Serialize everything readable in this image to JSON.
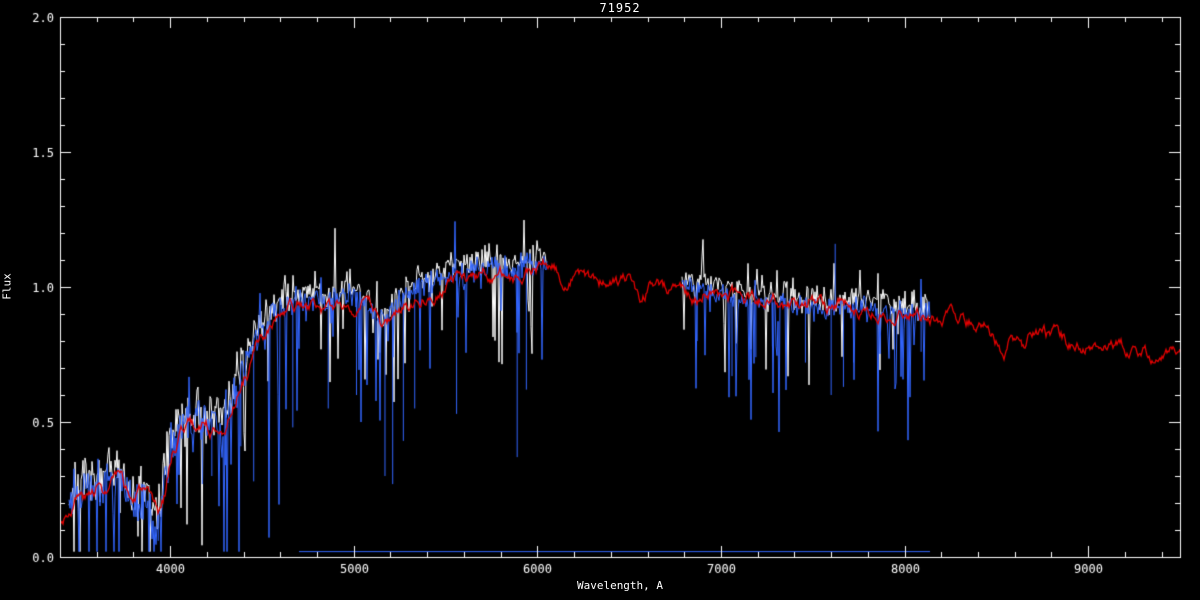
{
  "chart_data": {
    "type": "line",
    "title": "71952",
    "xlabel": "Wavelength, A",
    "ylabel": "Flux",
    "xlim": [
      3400,
      9500
    ],
    "ylim": [
      0.0,
      2.0
    ],
    "x_ticks": [
      {
        "v": 4000,
        "label": "4000"
      },
      {
        "v": 5000,
        "label": "5000"
      },
      {
        "v": 6000,
        "label": "6000"
      },
      {
        "v": 7000,
        "label": "7000"
      },
      {
        "v": 8000,
        "label": "8000"
      },
      {
        "v": 9000,
        "label": "9000"
      }
    ],
    "x_minor_step": 200,
    "y_ticks": [
      {
        "v": 0.0,
        "label": "0.0"
      },
      {
        "v": 0.5,
        "label": "0.5"
      },
      {
        "v": 1.0,
        "label": "1.0"
      },
      {
        "v": 1.5,
        "label": "1.5"
      },
      {
        "v": 2.0,
        "label": "2.0"
      }
    ],
    "y_minor_step": 0.1,
    "grid": false,
    "legend": "none",
    "colors": {
      "background": "#000000",
      "axis": "#ffffff",
      "text": "#ffffff",
      "observed_blue": "#3366ff",
      "observed_white": "#ffffff",
      "template_red": "#e00000"
    },
    "anchors": {
      "observed": [
        [
          3450,
          0.2
        ],
        [
          3480,
          0.26
        ],
        [
          3510,
          0.2
        ],
        [
          3540,
          0.28
        ],
        [
          3570,
          0.24
        ],
        [
          3600,
          0.3
        ],
        [
          3630,
          0.24
        ],
        [
          3660,
          0.31
        ],
        [
          3690,
          0.25
        ],
        [
          3720,
          0.32
        ],
        [
          3750,
          0.27
        ],
        [
          3780,
          0.22
        ],
        [
          3810,
          0.18
        ],
        [
          3840,
          0.26
        ],
        [
          3870,
          0.2
        ],
        [
          3900,
          0.16
        ],
        [
          3930,
          0.14
        ],
        [
          3960,
          0.25
        ],
        [
          4000,
          0.38
        ],
        [
          4040,
          0.46
        ],
        [
          4080,
          0.52
        ],
        [
          4120,
          0.48
        ],
        [
          4160,
          0.52
        ],
        [
          4200,
          0.48
        ],
        [
          4240,
          0.53
        ],
        [
          4280,
          0.5
        ],
        [
          4320,
          0.56
        ],
        [
          4360,
          0.62
        ],
        [
          4400,
          0.68
        ],
        [
          4440,
          0.76
        ],
        [
          4480,
          0.82
        ],
        [
          4520,
          0.86
        ],
        [
          4560,
          0.9
        ],
        [
          4600,
          0.91
        ],
        [
          4640,
          0.94
        ],
        [
          4680,
          0.96
        ],
        [
          4720,
          0.95
        ],
        [
          4760,
          0.96
        ],
        [
          4800,
          0.97
        ],
        [
          4840,
          0.93
        ],
        [
          4880,
          0.95
        ],
        [
          4920,
          0.96
        ],
        [
          4960,
          0.97
        ],
        [
          5000,
          0.96
        ],
        [
          5040,
          0.95
        ],
        [
          5080,
          0.93
        ],
        [
          5120,
          0.9
        ],
        [
          5160,
          0.88
        ],
        [
          5200,
          0.91
        ],
        [
          5240,
          0.94
        ],
        [
          5280,
          0.97
        ],
        [
          5320,
          0.99
        ],
        [
          5360,
          1.0
        ],
        [
          5400,
          1.01
        ],
        [
          5440,
          1.02
        ],
        [
          5480,
          1.03
        ],
        [
          5520,
          1.04
        ],
        [
          5560,
          1.05
        ],
        [
          5600,
          1.05
        ],
        [
          5640,
          1.06
        ],
        [
          5680,
          1.07
        ],
        [
          5720,
          1.07
        ],
        [
          5760,
          1.08
        ],
        [
          5800,
          1.08
        ],
        [
          5840,
          1.07
        ],
        [
          5880,
          1.05
        ],
        [
          5920,
          1.08
        ],
        [
          5960,
          1.08
        ],
        [
          6000,
          1.09
        ],
        [
          6050,
          1.08
        ],
        [
          6790,
          1.0
        ],
        [
          6840,
          1.0
        ],
        [
          6890,
          0.99
        ],
        [
          6940,
          0.98
        ],
        [
          6990,
          0.97
        ],
        [
          7040,
          0.97
        ],
        [
          7090,
          0.96
        ],
        [
          7140,
          0.96
        ],
        [
          7190,
          0.95
        ],
        [
          7240,
          0.95
        ],
        [
          7290,
          0.94
        ],
        [
          7340,
          0.94
        ],
        [
          7390,
          0.93
        ],
        [
          7440,
          0.93
        ],
        [
          7490,
          0.93
        ],
        [
          7540,
          0.92
        ],
        [
          7590,
          0.92
        ],
        [
          7640,
          0.93
        ],
        [
          7690,
          0.93
        ],
        [
          7740,
          0.92
        ],
        [
          7790,
          0.92
        ],
        [
          7840,
          0.93
        ],
        [
          7890,
          0.92
        ],
        [
          7940,
          0.91
        ],
        [
          7990,
          0.91
        ],
        [
          8040,
          0.9
        ],
        [
          8090,
          0.9
        ],
        [
          8140,
          0.9
        ]
      ],
      "template": [
        [
          3400,
          0.13
        ],
        [
          3450,
          0.18
        ],
        [
          3500,
          0.23
        ],
        [
          3550,
          0.21
        ],
        [
          3600,
          0.27
        ],
        [
          3650,
          0.23
        ],
        [
          3700,
          0.29
        ],
        [
          3750,
          0.25
        ],
        [
          3800,
          0.2
        ],
        [
          3850,
          0.26
        ],
        [
          3900,
          0.17
        ],
        [
          3935,
          0.14
        ],
        [
          3970,
          0.22
        ],
        [
          4000,
          0.36
        ],
        [
          4050,
          0.46
        ],
        [
          4100,
          0.51
        ],
        [
          4140,
          0.47
        ],
        [
          4180,
          0.51
        ],
        [
          4230,
          0.47
        ],
        [
          4280,
          0.51
        ],
        [
          4310,
          0.48
        ],
        [
          4350,
          0.58
        ],
        [
          4400,
          0.66
        ],
        [
          4450,
          0.74
        ],
        [
          4500,
          0.8
        ],
        [
          4550,
          0.85
        ],
        [
          4600,
          0.88
        ],
        [
          4650,
          0.91
        ],
        [
          4700,
          0.93
        ],
        [
          4750,
          0.91
        ],
        [
          4800,
          0.93
        ],
        [
          4860,
          0.89
        ],
        [
          4900,
          0.92
        ],
        [
          4950,
          0.94
        ],
        [
          5000,
          0.94
        ],
        [
          5050,
          0.93
        ],
        [
          5100,
          0.91
        ],
        [
          5170,
          0.86
        ],
        [
          5220,
          0.9
        ],
        [
          5270,
          0.93
        ],
        [
          5320,
          0.96
        ],
        [
          5380,
          0.98
        ],
        [
          5440,
          1.0
        ],
        [
          5500,
          1.01
        ],
        [
          5560,
          1.03
        ],
        [
          5620,
          1.04
        ],
        [
          5680,
          1.05
        ],
        [
          5740,
          1.05
        ],
        [
          5800,
          1.06
        ],
        [
          5890,
          1.01
        ],
        [
          5950,
          1.06
        ],
        [
          6000,
          1.07
        ],
        [
          6060,
          1.08
        ],
        [
          6120,
          1.05
        ],
        [
          6160,
          1.02
        ],
        [
          6200,
          1.04
        ],
        [
          6250,
          1.02
        ],
        [
          6300,
          1.04
        ],
        [
          6350,
          1.02
        ],
        [
          6400,
          1.03
        ],
        [
          6440,
          1.0
        ],
        [
          6500,
          1.02
        ],
        [
          6560,
          0.96
        ],
        [
          6620,
          1.01
        ],
        [
          6680,
          1.0
        ],
        [
          6740,
          1.0
        ],
        [
          6800,
          1.0
        ],
        [
          6870,
          0.95
        ],
        [
          6910,
          0.99
        ],
        [
          6960,
          0.98
        ],
        [
          7010,
          0.97
        ],
        [
          7060,
          0.97
        ],
        [
          7110,
          0.96
        ],
        [
          7160,
          0.96
        ],
        [
          7210,
          0.95
        ],
        [
          7260,
          0.95
        ],
        [
          7310,
          0.94
        ],
        [
          7360,
          0.94
        ],
        [
          7410,
          0.93
        ],
        [
          7460,
          0.93
        ],
        [
          7510,
          0.93
        ],
        [
          7560,
          0.92
        ],
        [
          7610,
          0.92
        ],
        [
          7660,
          0.93
        ],
        [
          7710,
          0.93
        ],
        [
          7760,
          0.92
        ],
        [
          7810,
          0.92
        ],
        [
          7860,
          0.93
        ],
        [
          7910,
          0.92
        ],
        [
          7960,
          0.91
        ],
        [
          8010,
          0.91
        ],
        [
          8060,
          0.9
        ],
        [
          8110,
          0.9
        ],
        [
          8160,
          0.89
        ],
        [
          8210,
          0.89
        ],
        [
          8260,
          0.88
        ],
        [
          8310,
          0.88
        ],
        [
          8360,
          0.87
        ],
        [
          8410,
          0.86
        ],
        [
          8460,
          0.84
        ],
        [
          8500,
          0.79
        ],
        [
          8540,
          0.7
        ],
        [
          8570,
          0.82
        ],
        [
          8610,
          0.8
        ],
        [
          8650,
          0.74
        ],
        [
          8690,
          0.82
        ],
        [
          8740,
          0.82
        ],
        [
          8790,
          0.81
        ],
        [
          8840,
          0.81
        ],
        [
          8890,
          0.8
        ],
        [
          8940,
          0.8
        ],
        [
          8990,
          0.79
        ],
        [
          9040,
          0.79
        ],
        [
          9090,
          0.79
        ],
        [
          9140,
          0.78
        ],
        [
          9190,
          0.78
        ],
        [
          9240,
          0.77
        ],
        [
          9290,
          0.77
        ],
        [
          9340,
          0.76
        ],
        [
          9390,
          0.76
        ],
        [
          9440,
          0.75
        ],
        [
          9500,
          0.75
        ]
      ],
      "baseline": [
        [
          4700,
          0.006
        ],
        [
          8140,
          0.006
        ]
      ]
    },
    "series": [
      {
        "name": "error-baseline",
        "color": "#3366ff",
        "width": 1,
        "anchors": "baseline",
        "segments": [
          [
            4700,
            8140
          ]
        ],
        "noise": {
          "seed": 5,
          "amp": 0.004,
          "spike_prob": 0,
          "spike_depth": 0,
          "up_prob": 0
        }
      },
      {
        "name": "observed-white",
        "color": "#ffffff",
        "width": 1,
        "anchors": "observed",
        "offset": 0.03,
        "segments": [
          [
            3450,
            6050
          ],
          [
            6790,
            8140
          ]
        ],
        "noise": {
          "seed": 7,
          "amp": 0.05,
          "spike_prob": 0.09,
          "spike_depth": 0.4,
          "up_prob": 0.05,
          "boost_below": 4650,
          "boost_factor": 1.7
        }
      },
      {
        "name": "observed-blue",
        "color": "#3366ff",
        "width": 1,
        "anchors": "observed",
        "offset": 0,
        "segments": [
          [
            3450,
            6050
          ],
          [
            6790,
            8140
          ]
        ],
        "noise": {
          "seed": 11,
          "amp": 0.045,
          "spike_prob": 0.12,
          "spike_depth": 0.5,
          "up_prob": 0.02,
          "boost_below": 4650,
          "boost_factor": 1.8
        },
        "features": [
          [
            3935,
            0.06
          ],
          [
            4175,
            0.27
          ],
          [
            4227,
            0.3
          ],
          [
            4302,
            0.34
          ],
          [
            4385,
            0.41
          ],
          [
            4455,
            0.28
          ],
          [
            4668,
            0.48
          ],
          [
            4861,
            0.55
          ],
          [
            5015,
            0.6
          ],
          [
            5170,
            0.3
          ],
          [
            5212,
            0.27
          ],
          [
            5270,
            0.43
          ],
          [
            5332,
            0.55
          ],
          [
            5560,
            0.53
          ],
          [
            5890,
            0.37
          ],
          [
            5940,
            0.62
          ],
          [
            6870,
            0.8
          ],
          [
            7060,
            0.67
          ],
          [
            7190,
            0.74
          ],
          [
            7280,
            0.78
          ],
          [
            7460,
            0.72
          ],
          [
            7600,
            0.6
          ],
          [
            7622,
            1.16
          ],
          [
            7667,
            0.63
          ],
          [
            7722,
            0.72
          ],
          [
            8090,
            0.76
          ]
        ]
      },
      {
        "name": "template-red",
        "color": "#e00000",
        "width": 1.3,
        "anchors": "template",
        "offset": 0,
        "segments": [
          [
            3400,
            9500
          ]
        ],
        "noise": {
          "seed": 3,
          "amp": 0.012,
          "smooth": true,
          "spike_prob": 0,
          "spike_depth": 0,
          "up_prob": 0
        }
      }
    ]
  }
}
